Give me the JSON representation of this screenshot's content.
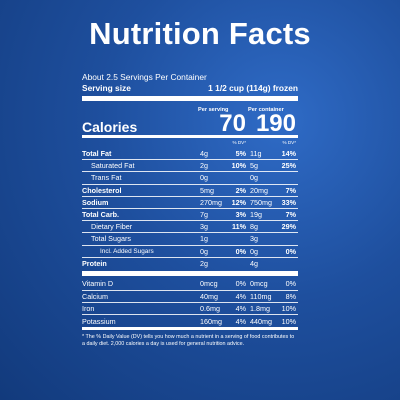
{
  "title": "Nutrition Facts",
  "servings": "About 2.5 Servings Per Container",
  "serving_size_label": "Serving size",
  "serving_size_value": "1 1/2 cup (114g) frozen",
  "per_serving": "Per serving",
  "per_container": "Per container",
  "calories_label": "Calories",
  "calories_serving": "70",
  "calories_container": "190",
  "dv_label": "% DV*",
  "rows": [
    {
      "name": "Total Fat",
      "a1": "4g",
      "p1": "5%",
      "a2": "11g",
      "p2": "14%",
      "style": "bold"
    },
    {
      "name": "Saturated Fat",
      "a1": "2g",
      "p1": "10%",
      "a2": "5g",
      "p2": "25%",
      "style": "sub"
    },
    {
      "name": "Trans Fat",
      "a1": "0g",
      "p1": "",
      "a2": "0g",
      "p2": "",
      "style": "sub"
    },
    {
      "name": "Cholesterol",
      "a1": "5mg",
      "p1": "2%",
      "a2": "20mg",
      "p2": "7%",
      "style": "bold"
    },
    {
      "name": "Sodium",
      "a1": "270mg",
      "p1": "12%",
      "a2": "750mg",
      "p2": "33%",
      "style": "bold"
    },
    {
      "name": "Total Carb.",
      "a1": "7g",
      "p1": "3%",
      "a2": "19g",
      "p2": "7%",
      "style": "bold"
    },
    {
      "name": "Dietary Fiber",
      "a1": "3g",
      "p1": "11%",
      "a2": "8g",
      "p2": "29%",
      "style": "sub"
    },
    {
      "name": "Total Sugars",
      "a1": "1g",
      "p1": "",
      "a2": "3g",
      "p2": "",
      "style": "sub"
    },
    {
      "name": "Incl. Added Sugars",
      "a1": "0g",
      "p1": "0%",
      "a2": "0g",
      "p2": "0%",
      "style": "subsub"
    },
    {
      "name": "Protein",
      "a1": "2g",
      "p1": "",
      "a2": "4g",
      "p2": "",
      "style": "bold"
    }
  ],
  "vitamins": [
    {
      "name": "Vitamin D",
      "a1": "0mcg",
      "p1": "0%",
      "a2": "0mcg",
      "p2": "0%"
    },
    {
      "name": "Calcium",
      "a1": "40mg",
      "p1": "4%",
      "a2": "110mg",
      "p2": "8%"
    },
    {
      "name": "Iron",
      "a1": "0.6mg",
      "p1": "4%",
      "a2": "1.8mg",
      "p2": "10%"
    },
    {
      "name": "Potassium",
      "a1": "160mg",
      "p1": "4%",
      "a2": "440mg",
      "p2": "10%"
    }
  ],
  "footnote": "* The % Daily Value (DV) tells you how much a nutrient in a serving of food contributes to a daily diet. 2,000 calories a day is used for general nutrition advice."
}
